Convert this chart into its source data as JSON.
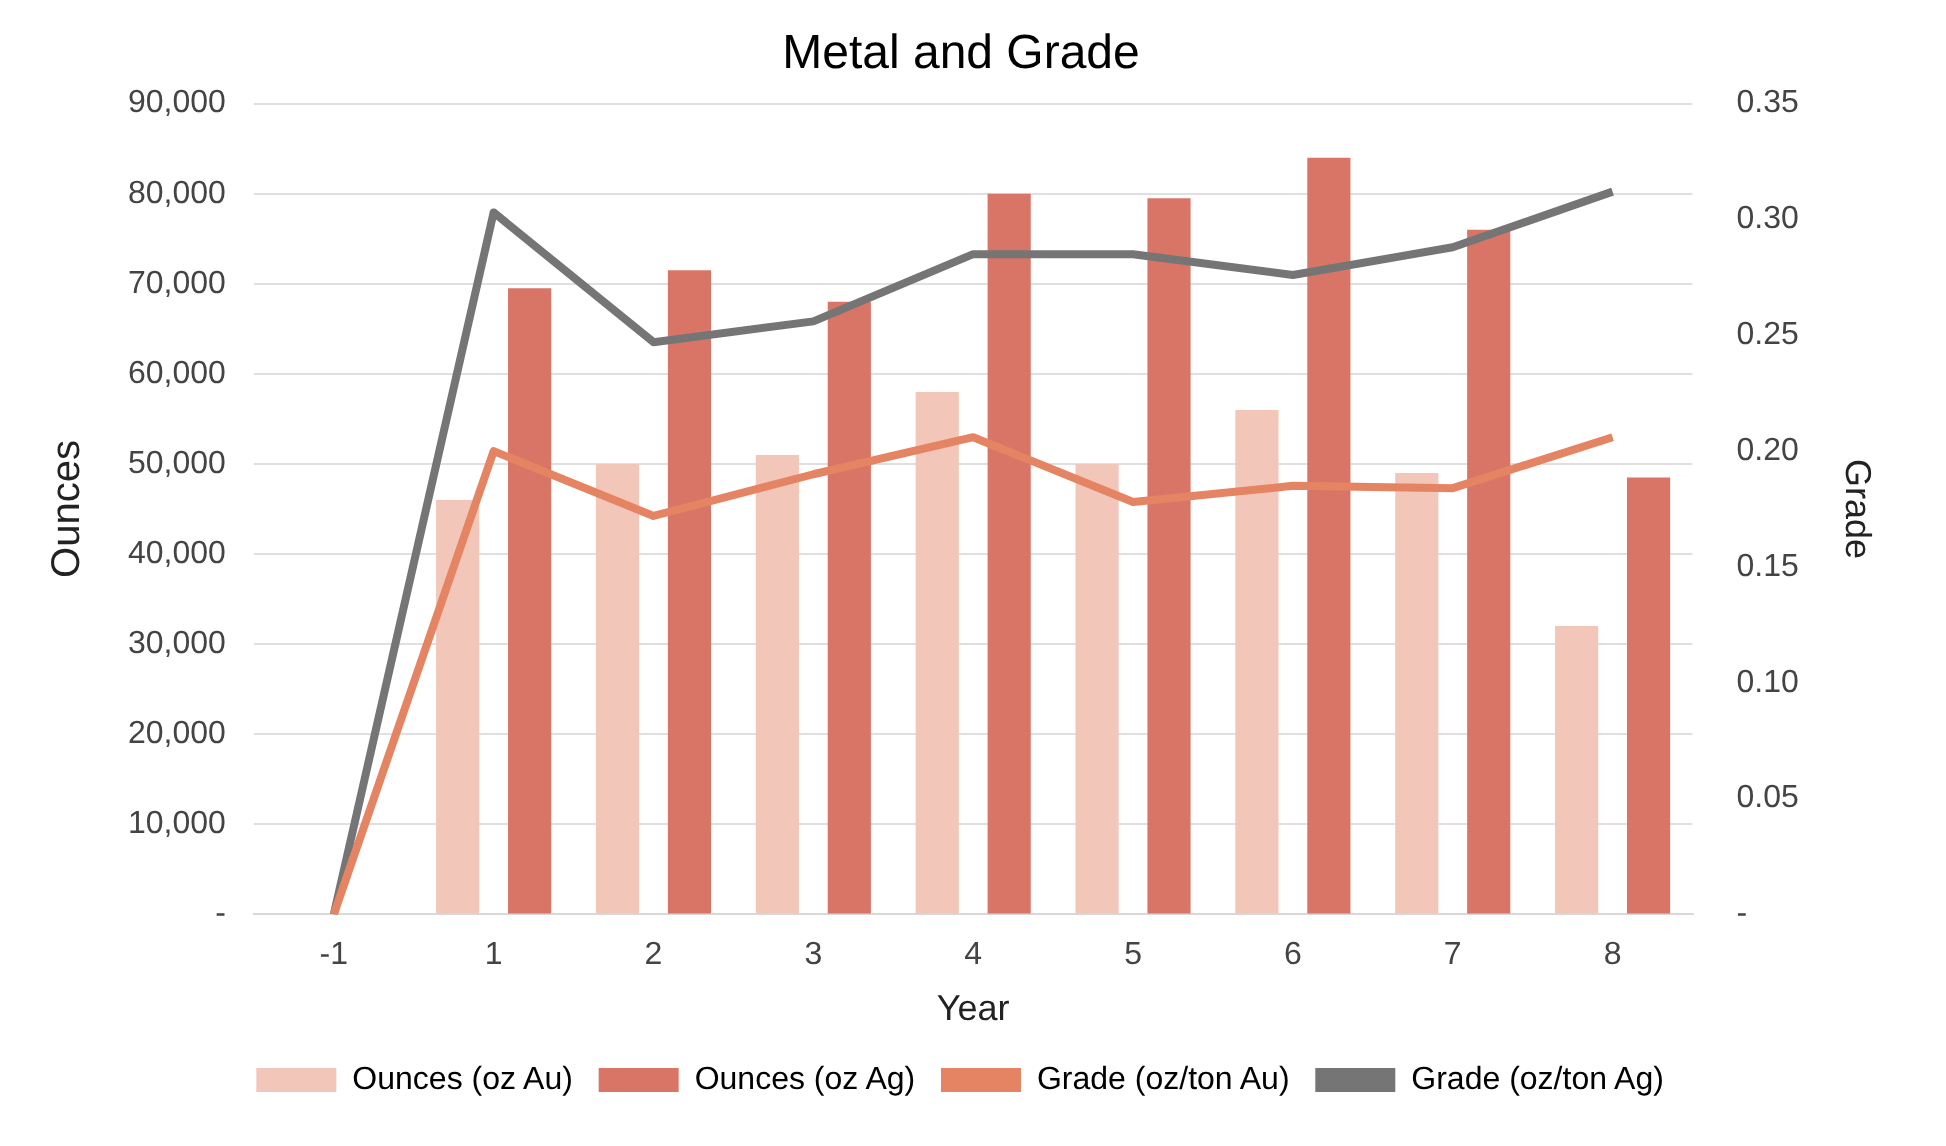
{
  "chart_data": {
    "type": "bar",
    "title": "Metal and Grade",
    "xlabel": "Year",
    "ylabel": "Ounces",
    "y2label": "Grade",
    "categories": [
      "-1",
      "1",
      "2",
      "3",
      "4",
      "5",
      "6",
      "7",
      "8"
    ],
    "series": [
      {
        "name": "Ounces (oz Au)",
        "color": "#f2c6b8",
        "values": [
          0,
          46000,
          50000,
          51000,
          58000,
          50000,
          56000,
          49000,
          32000
        ]
      },
      {
        "name": "Ounces (oz Ag)",
        "color": "#d97566",
        "values": [
          0,
          69500,
          71500,
          68000,
          80000,
          79500,
          84000,
          76000,
          48500
        ]
      },
      {
        "name": "Grade (oz/ton Au)",
        "type": "line",
        "axis": "y2",
        "color": "#e58462",
        "values": [
          0,
          0.2,
          0.172,
          0.19,
          0.206,
          0.178,
          0.185,
          0.184,
          0.206
        ]
      },
      {
        "name": "Grade (oz/ton Ag)",
        "type": "line",
        "axis": "y2",
        "color": "#757575",
        "values": [
          0,
          0.303,
          0.247,
          0.256,
          0.285,
          0.285,
          0.276,
          0.288,
          0.312
        ]
      }
    ],
    "ylim": [
      0,
      90000
    ],
    "yticks": [
      {
        "value": 0,
        "label": "-"
      },
      {
        "value": 10000,
        "label": "10,000"
      },
      {
        "value": 20000,
        "label": "20,000"
      },
      {
        "value": 30000,
        "label": "30,000"
      },
      {
        "value": 40000,
        "label": "40,000"
      },
      {
        "value": 50000,
        "label": "50,000"
      },
      {
        "value": 60000,
        "label": "60,000"
      },
      {
        "value": 70000,
        "label": "70,000"
      },
      {
        "value": 80000,
        "label": "80,000"
      },
      {
        "value": 90000,
        "label": "90,000"
      }
    ],
    "y2lim": [
      0,
      0.35
    ],
    "y2ticks": [
      {
        "value": 0,
        "label": "-"
      },
      0.05,
      {
        "value": 0.1,
        "label": "0.10"
      },
      0.15,
      {
        "value": 0.2,
        "label": "0.20"
      },
      0.25,
      {
        "value": 0.3,
        "label": "0.30"
      },
      0.35
    ],
    "grid": "y",
    "legend": "bottom",
    "marker": "none"
  }
}
